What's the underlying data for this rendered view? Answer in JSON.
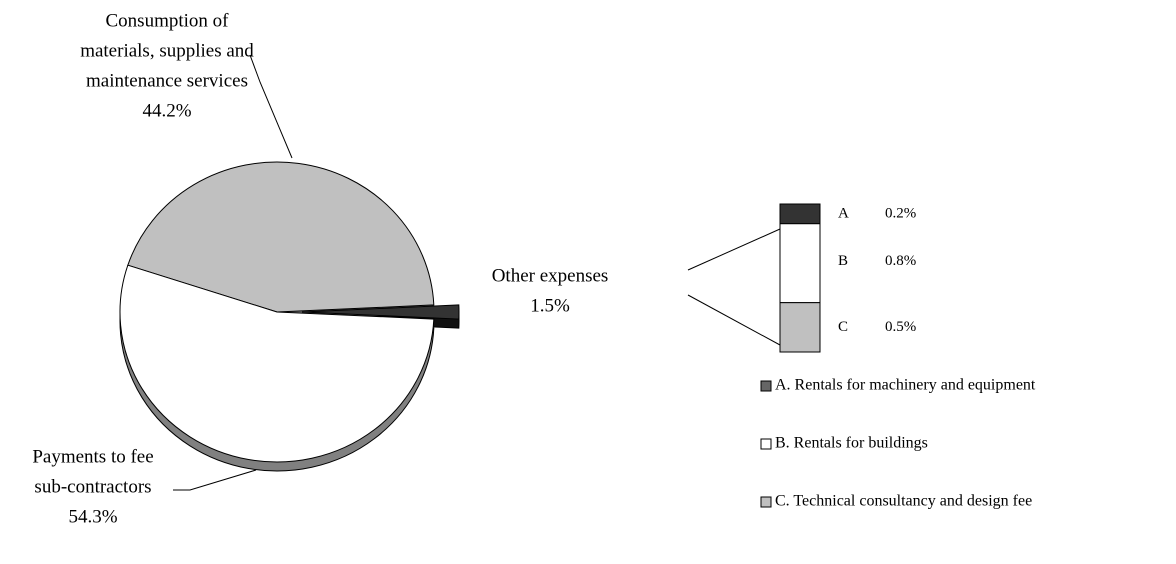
{
  "chart_data": {
    "type": "pie",
    "categories": [
      [
        "Consumption of",
        "materials, supplies and",
        "maintenance services"
      ],
      [
        "Payments to fee",
        "sub-contractors"
      ],
      [
        "Other expenses"
      ]
    ],
    "values": [
      44.2,
      54.3,
      1.5
    ],
    "value_labels": [
      "44.2%",
      "54.3%",
      "1.5%"
    ],
    "colors": [
      "#c0c0c0",
      "#ffffff",
      "#333333"
    ],
    "breakdown": {
      "type": "bar",
      "categories": [
        "A",
        "B",
        "C"
      ],
      "values": [
        0.2,
        0.8,
        0.5
      ],
      "value_labels": [
        "0.2%",
        "0.8%",
        "0.5%"
      ],
      "colors": [
        "#333333",
        "#ffffff",
        "#c0c0c0"
      ],
      "legend": [
        "A. Rentals for machinery and equipment",
        "B. Rentals for buildings",
        "C. Technical consultancy and design fee"
      ],
      "legend_colors": [
        "#666666",
        "#ffffff",
        "#c0c0c0"
      ]
    }
  }
}
